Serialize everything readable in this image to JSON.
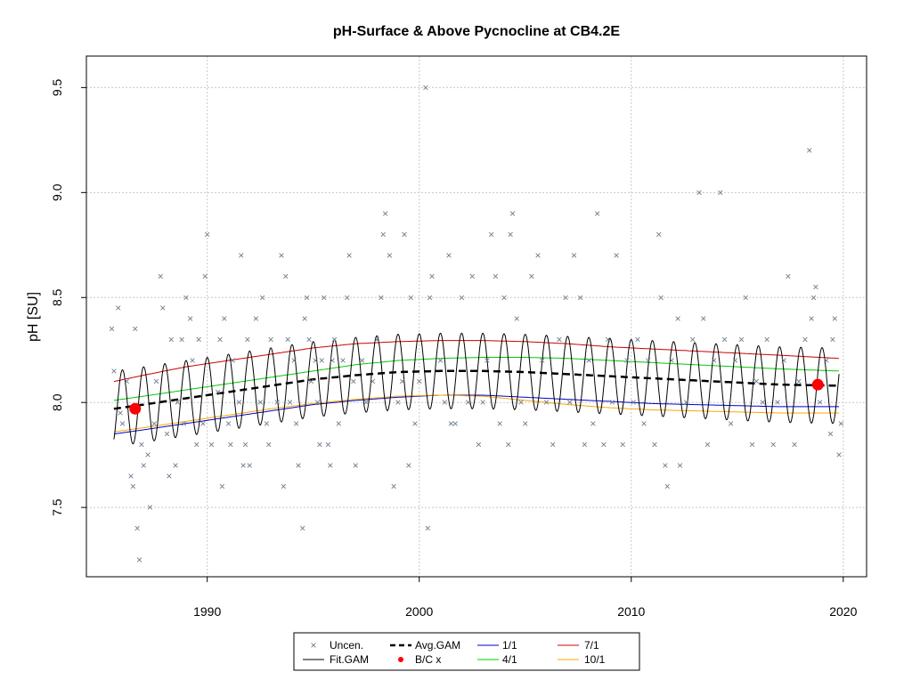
{
  "chart_data": {
    "type": "scatter",
    "title": "pH-Surface & Above Pycnocline at CB4.2E",
    "xlabel": "",
    "ylabel": "pH [SU]",
    "xlim": [
      1984.3,
      2021.1
    ],
    "ylim": [
      7.17,
      9.65
    ],
    "x_ticks": [
      1990,
      2000,
      2010,
      2020
    ],
    "y_ticks": [
      7.5,
      8.0,
      8.5,
      9.0,
      9.5
    ],
    "x_tick_labels": [
      "1990",
      "2000",
      "2010",
      "2020"
    ],
    "y_tick_labels": [
      "7.5",
      "8.0",
      "8.5",
      "9.0",
      "9.5"
    ],
    "grid": true,
    "legend_position": "bottom",
    "legend": {
      "col1": [
        "Uncen.",
        "Fit.GAM"
      ],
      "col2": [
        "Avg.GAM",
        "B/C x"
      ],
      "col3": [
        "1/1",
        "4/1"
      ],
      "col4": [
        "7/1",
        "10/1"
      ]
    },
    "colors": {
      "points": "#6b7b8c",
      "fit": "#000000",
      "avg": "#000000",
      "jan1": "#0000cc",
      "apr1": "#00cc00",
      "jul1": "#cc0000",
      "oct1": "#ffa500",
      "bc": "#ff0000"
    },
    "series": [
      {
        "name": "Uncen.",
        "points": [
          [
            1985.5,
            8.35
          ],
          [
            1985.6,
            8.15
          ],
          [
            1985.8,
            8.45
          ],
          [
            1985.9,
            7.95
          ],
          [
            1986.0,
            7.9
          ],
          [
            1986.2,
            8.1
          ],
          [
            1986.4,
            7.65
          ],
          [
            1986.5,
            7.6
          ],
          [
            1986.6,
            8.35
          ],
          [
            1986.7,
            7.4
          ],
          [
            1986.8,
            7.25
          ],
          [
            1986.9,
            7.8
          ],
          [
            1987.0,
            7.7
          ],
          [
            1987.2,
            7.75
          ],
          [
            1987.3,
            7.5
          ],
          [
            1987.5,
            7.9
          ],
          [
            1987.6,
            8.1
          ],
          [
            1987.8,
            8.6
          ],
          [
            1987.9,
            8.45
          ],
          [
            1988.1,
            7.85
          ],
          [
            1988.2,
            7.65
          ],
          [
            1988.3,
            8.3
          ],
          [
            1988.5,
            7.7
          ],
          [
            1988.6,
            8.0
          ],
          [
            1988.8,
            8.3
          ],
          [
            1988.9,
            7.9
          ],
          [
            1989.0,
            8.5
          ],
          [
            1989.2,
            8.4
          ],
          [
            1989.3,
            8.2
          ],
          [
            1989.5,
            7.8
          ],
          [
            1989.6,
            8.3
          ],
          [
            1989.8,
            7.9
          ],
          [
            1989.9,
            8.6
          ],
          [
            1990.0,
            8.8
          ],
          [
            1990.2,
            7.8
          ],
          [
            1990.5,
            8.05
          ],
          [
            1990.6,
            8.3
          ],
          [
            1990.7,
            7.6
          ],
          [
            1990.8,
            8.4
          ],
          [
            1991.0,
            7.9
          ],
          [
            1991.1,
            7.8
          ],
          [
            1991.2,
            8.2
          ],
          [
            1991.5,
            8.0
          ],
          [
            1991.6,
            8.7
          ],
          [
            1991.7,
            7.7
          ],
          [
            1991.8,
            7.8
          ],
          [
            1991.9,
            8.3
          ],
          [
            1992.0,
            7.7
          ],
          [
            1992.3,
            8.4
          ],
          [
            1992.5,
            8.0
          ],
          [
            1992.6,
            8.5
          ],
          [
            1992.8,
            7.9
          ],
          [
            1992.9,
            7.8
          ],
          [
            1993.0,
            8.3
          ],
          [
            1993.3,
            8.0
          ],
          [
            1993.5,
            8.7
          ],
          [
            1993.6,
            7.6
          ],
          [
            1993.7,
            8.6
          ],
          [
            1993.8,
            8.3
          ],
          [
            1993.9,
            8.0
          ],
          [
            1994.1,
            8.2
          ],
          [
            1994.2,
            7.9
          ],
          [
            1994.3,
            7.7
          ],
          [
            1994.5,
            7.4
          ],
          [
            1994.6,
            8.4
          ],
          [
            1994.7,
            8.5
          ],
          [
            1994.8,
            8.3
          ],
          [
            1994.9,
            8.1
          ],
          [
            1995.1,
            8.2
          ],
          [
            1995.2,
            8.0
          ],
          [
            1995.3,
            7.8
          ],
          [
            1995.4,
            8.2
          ],
          [
            1995.5,
            8.5
          ],
          [
            1995.7,
            7.8
          ],
          [
            1995.8,
            7.7
          ],
          [
            1995.9,
            8.2
          ],
          [
            1996.0,
            8.3
          ],
          [
            1996.2,
            7.9
          ],
          [
            1996.4,
            8.2
          ],
          [
            1996.6,
            8.5
          ],
          [
            1996.7,
            8.7
          ],
          [
            1996.9,
            8.1
          ],
          [
            1997.0,
            7.7
          ],
          [
            1997.3,
            8.2
          ],
          [
            1997.5,
            8.0
          ],
          [
            1997.8,
            8.1
          ],
          [
            1998.0,
            8.3
          ],
          [
            1998.2,
            8.5
          ],
          [
            1998.3,
            8.8
          ],
          [
            1998.4,
            8.9
          ],
          [
            1998.6,
            8.7
          ],
          [
            1998.8,
            7.6
          ],
          [
            1999.0,
            8.0
          ],
          [
            1999.2,
            8.1
          ],
          [
            1999.3,
            8.8
          ],
          [
            1999.5,
            7.7
          ],
          [
            1999.6,
            8.5
          ],
          [
            1999.8,
            7.9
          ],
          [
            2000.0,
            8.1
          ],
          [
            2000.3,
            9.5
          ],
          [
            2000.4,
            7.4
          ],
          [
            2000.5,
            8.5
          ],
          [
            2000.6,
            8.6
          ],
          [
            2001.0,
            8.2
          ],
          [
            2001.2,
            8.0
          ],
          [
            2001.4,
            8.7
          ],
          [
            2001.5,
            7.9
          ],
          [
            2001.7,
            7.9
          ],
          [
            2002.0,
            8.5
          ],
          [
            2002.3,
            8.0
          ],
          [
            2002.5,
            8.6
          ],
          [
            2002.8,
            7.8
          ],
          [
            2003.0,
            8.0
          ],
          [
            2003.2,
            8.2
          ],
          [
            2003.4,
            8.8
          ],
          [
            2003.6,
            8.6
          ],
          [
            2003.8,
            7.9
          ],
          [
            2004.0,
            8.5
          ],
          [
            2004.2,
            7.8
          ],
          [
            2004.3,
            8.8
          ],
          [
            2004.4,
            8.9
          ],
          [
            2004.6,
            8.4
          ],
          [
            2004.8,
            8.0
          ],
          [
            2005.0,
            7.9
          ],
          [
            2005.3,
            8.6
          ],
          [
            2005.6,
            8.7
          ],
          [
            2005.8,
            8.2
          ],
          [
            2006.0,
            8.0
          ],
          [
            2006.3,
            7.8
          ],
          [
            2006.6,
            8.3
          ],
          [
            2006.9,
            8.5
          ],
          [
            2007.1,
            8.0
          ],
          [
            2007.3,
            8.7
          ],
          [
            2007.6,
            8.5
          ],
          [
            2007.8,
            7.8
          ],
          [
            2008.0,
            8.2
          ],
          [
            2008.2,
            7.9
          ],
          [
            2008.4,
            8.9
          ],
          [
            2008.7,
            7.8
          ],
          [
            2008.9,
            8.3
          ],
          [
            2009.1,
            8.0
          ],
          [
            2009.3,
            8.7
          ],
          [
            2009.6,
            7.8
          ],
          [
            2009.8,
            8.2
          ],
          [
            2010.1,
            8.0
          ],
          [
            2010.3,
            8.3
          ],
          [
            2010.6,
            7.9
          ],
          [
            2010.8,
            8.2
          ],
          [
            2011.1,
            7.8
          ],
          [
            2011.3,
            8.8
          ],
          [
            2011.4,
            8.5
          ],
          [
            2011.6,
            7.7
          ],
          [
            2011.7,
            7.6
          ],
          [
            2011.9,
            8.2
          ],
          [
            2012.2,
            8.4
          ],
          [
            2012.3,
            7.7
          ],
          [
            2012.6,
            8.0
          ],
          [
            2012.9,
            8.3
          ],
          [
            2013.2,
            9.0
          ],
          [
            2013.4,
            8.4
          ],
          [
            2013.6,
            7.8
          ],
          [
            2013.9,
            8.2
          ],
          [
            2014.2,
            9.0
          ],
          [
            2014.4,
            8.3
          ],
          [
            2014.7,
            7.9
          ],
          [
            2014.9,
            8.2
          ],
          [
            2015.2,
            8.3
          ],
          [
            2015.4,
            8.5
          ],
          [
            2015.7,
            7.8
          ],
          [
            2015.9,
            8.1
          ],
          [
            2016.2,
            8.0
          ],
          [
            2016.4,
            8.3
          ],
          [
            2016.7,
            7.8
          ],
          [
            2016.9,
            8.0
          ],
          [
            2017.2,
            8.2
          ],
          [
            2017.4,
            8.6
          ],
          [
            2017.7,
            7.8
          ],
          [
            2017.9,
            8.1
          ],
          [
            2018.2,
            8.3
          ],
          [
            2018.4,
            9.2
          ],
          [
            2018.5,
            8.4
          ],
          [
            2018.6,
            8.5
          ],
          [
            2018.7,
            8.55
          ],
          [
            2018.9,
            8.0
          ],
          [
            2019.2,
            8.2
          ],
          [
            2019.4,
            7.85
          ],
          [
            2019.5,
            8.3
          ],
          [
            2019.6,
            8.4
          ],
          [
            2019.8,
            7.75
          ],
          [
            2019.9,
            7.9
          ]
        ]
      },
      {
        "name": "Fit.GAM",
        "start": 1985.6,
        "end": 2019.8,
        "amplitude": 0.18,
        "peak_phase": 0.5
      },
      {
        "name": "Avg.GAM",
        "x": [
          1985.6,
          1987,
          1989,
          1991,
          1993,
          1995,
          1997,
          1999,
          2001,
          2003,
          2005,
          2007,
          2009,
          2011,
          2013,
          2015,
          2017,
          2019.8
        ],
        "y": [
          7.97,
          7.99,
          8.02,
          8.05,
          8.08,
          8.11,
          8.13,
          8.145,
          8.15,
          8.15,
          8.145,
          8.135,
          8.125,
          8.115,
          8.105,
          8.095,
          8.085,
          8.08
        ]
      },
      {
        "name": "1/1",
        "x": [
          1985.6,
          1987,
          1989,
          1991,
          1993,
          1995,
          1997,
          1999,
          2001,
          2003,
          2005,
          2007,
          2009,
          2011,
          2013,
          2015,
          2017,
          2019.8
        ],
        "y": [
          7.85,
          7.87,
          7.9,
          7.93,
          7.96,
          7.99,
          8.01,
          8.025,
          8.035,
          8.035,
          8.025,
          8.015,
          8.005,
          7.995,
          7.99,
          7.985,
          7.98,
          7.98
        ]
      },
      {
        "name": "4/1",
        "x": [
          1985.6,
          1987,
          1989,
          1991,
          1993,
          1995,
          1997,
          1999,
          2001,
          2003,
          2005,
          2007,
          2009,
          2011,
          2013,
          2015,
          2017,
          2019.8
        ],
        "y": [
          8.01,
          8.03,
          8.06,
          8.09,
          8.12,
          8.15,
          8.18,
          8.2,
          8.21,
          8.215,
          8.215,
          8.21,
          8.2,
          8.19,
          8.18,
          8.17,
          8.16,
          8.15
        ]
      },
      {
        "name": "7/1",
        "x": [
          1985.6,
          1987,
          1989,
          1991,
          1993,
          1995,
          1997,
          1999,
          2001,
          2003,
          2005,
          2007,
          2009,
          2011,
          2013,
          2015,
          2017,
          2019.8
        ],
        "y": [
          8.1,
          8.13,
          8.17,
          8.2,
          8.23,
          8.26,
          8.28,
          8.29,
          8.295,
          8.295,
          8.29,
          8.28,
          8.265,
          8.255,
          8.245,
          8.235,
          8.225,
          8.21
        ]
      },
      {
        "name": "10/1",
        "x": [
          1985.6,
          1987,
          1989,
          1991,
          1993,
          1995,
          1997,
          1999,
          2001,
          2003,
          2005,
          2007,
          2009,
          2011,
          2013,
          2015,
          2017,
          2019.8
        ],
        "y": [
          7.86,
          7.88,
          7.91,
          7.94,
          7.97,
          7.995,
          8.015,
          8.03,
          8.035,
          8.03,
          8.01,
          7.99,
          7.975,
          7.965,
          7.96,
          7.955,
          7.95,
          7.95
        ]
      },
      {
        "name": "B/C x",
        "points": [
          [
            1986.6,
            7.97
          ],
          [
            2018.8,
            8.085
          ]
        ]
      }
    ]
  }
}
